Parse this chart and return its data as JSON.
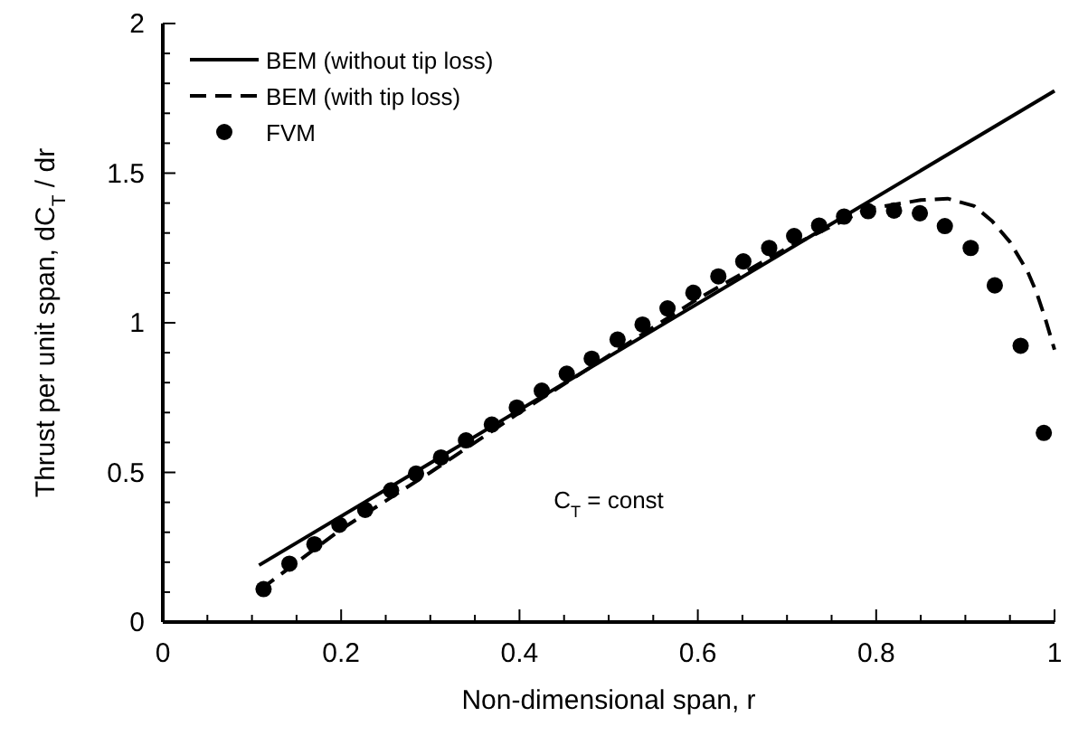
{
  "chart_data": {
    "type": "line",
    "xlabel": "Non-dimensional span, r",
    "ylabel": "Thrust per unit span, dC$_{T}$ / dr",
    "xlim": [
      0,
      1
    ],
    "ylim": [
      0,
      2
    ],
    "xticks": [
      0,
      {
        "value": 0.05,
        "label": null
      },
      {
        "value": 0.1,
        "label": null
      },
      {
        "value": 0.15,
        "label": null
      },
      0.2,
      {
        "value": 0.25,
        "label": null
      },
      {
        "value": 0.3,
        "label": null
      },
      {
        "value": 0.35,
        "label": null
      },
      0.4,
      {
        "value": 0.45,
        "label": null
      },
      {
        "value": 0.5,
        "label": null
      },
      {
        "value": 0.55,
        "label": null
      },
      0.6,
      {
        "value": 0.65,
        "label": null
      },
      {
        "value": 0.7,
        "label": null
      },
      {
        "value": 0.75,
        "label": null
      },
      0.8,
      {
        "value": 0.85,
        "label": null
      },
      {
        "value": 0.9,
        "label": null
      },
      {
        "value": 0.95,
        "label": null
      },
      1
    ],
    "yticks": [
      0,
      {
        "value": 0.1,
        "label": null
      },
      {
        "value": 0.2,
        "label": null
      },
      {
        "value": 0.3,
        "label": null
      },
      {
        "value": 0.4,
        "label": null
      },
      0.5,
      {
        "value": 0.6,
        "label": null
      },
      {
        "value": 0.7,
        "label": null
      },
      {
        "value": 0.8,
        "label": null
      },
      {
        "value": 0.9,
        "label": null
      },
      1,
      {
        "value": 1.1,
        "label": null
      },
      {
        "value": 1.2,
        "label": null
      },
      {
        "value": 1.3,
        "label": null
      },
      {
        "value": 1.4,
        "label": null
      },
      1.5,
      {
        "value": 1.6,
        "label": null
      },
      {
        "value": 1.7,
        "label": null
      },
      {
        "value": 1.8,
        "label": null
      },
      {
        "value": 1.9,
        "label": null
      },
      2
    ],
    "legend": "top left",
    "grid": false,
    "annotations": [
      "C$_{T}$ = const"
    ],
    "series": [
      {
        "name": "BEM (without tip loss)",
        "color": "#000000",
        "line_style": "solid",
        "marker": "none",
        "x": [
          0.108,
          1.0
        ],
        "values": [
          0.19,
          1.775
        ]
      },
      {
        "name": "BEM (with tip loss)",
        "color": "#000000",
        "line_style": "dashed",
        "marker": "none",
        "x": [
          0.11,
          0.2,
          0.3,
          0.4,
          0.5,
          0.6,
          0.7,
          0.79,
          0.85,
          0.88,
          0.91,
          0.93,
          0.95,
          0.97,
          0.98,
          0.99,
          1.0
        ],
        "values": [
          0.11,
          0.31,
          0.5,
          0.7,
          0.89,
          1.08,
          1.25,
          1.38,
          1.41,
          1.415,
          1.39,
          1.34,
          1.27,
          1.17,
          1.1,
          1.01,
          0.91
        ]
      },
      {
        "name": "FVM",
        "color": "#000000",
        "type": "scatter",
        "marker": "circle",
        "x": [
          0.113,
          0.142,
          0.17,
          0.198,
          0.227,
          0.256,
          0.284,
          0.312,
          0.34,
          0.369,
          0.397,
          0.425,
          0.453,
          0.481,
          0.51,
          0.538,
          0.566,
          0.595,
          0.623,
          0.651,
          0.68,
          0.708,
          0.736,
          0.764,
          0.791,
          0.82,
          0.849,
          0.877,
          0.906,
          0.933,
          0.962,
          0.988
        ],
        "values": [
          0.11,
          0.195,
          0.26,
          0.325,
          0.375,
          0.44,
          0.496,
          0.55,
          0.607,
          0.66,
          0.717,
          0.773,
          0.83,
          0.88,
          0.944,
          0.994,
          1.048,
          1.1,
          1.155,
          1.205,
          1.25,
          1.29,
          1.325,
          1.355,
          1.373,
          1.375,
          1.366,
          1.323,
          1.25,
          1.125,
          0.923,
          0.632
        ]
      }
    ]
  }
}
